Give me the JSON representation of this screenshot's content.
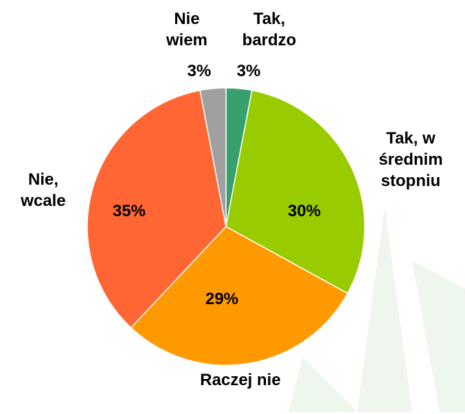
{
  "chart_data": {
    "type": "pie",
    "categories": [
      "Tak, bardzo",
      "Tak, w średnim stopniu",
      "Raczej nie",
      "Nie, wcale",
      "Nie wiem"
    ],
    "values": [
      3,
      30,
      29,
      35,
      3
    ],
    "value_labels": [
      "3%",
      "30%",
      "29%",
      "35%",
      "3%"
    ],
    "colors": [
      "#36a06f",
      "#99cc00",
      "#ff9900",
      "#ff6633",
      "#a0a0a0"
    ]
  }
}
